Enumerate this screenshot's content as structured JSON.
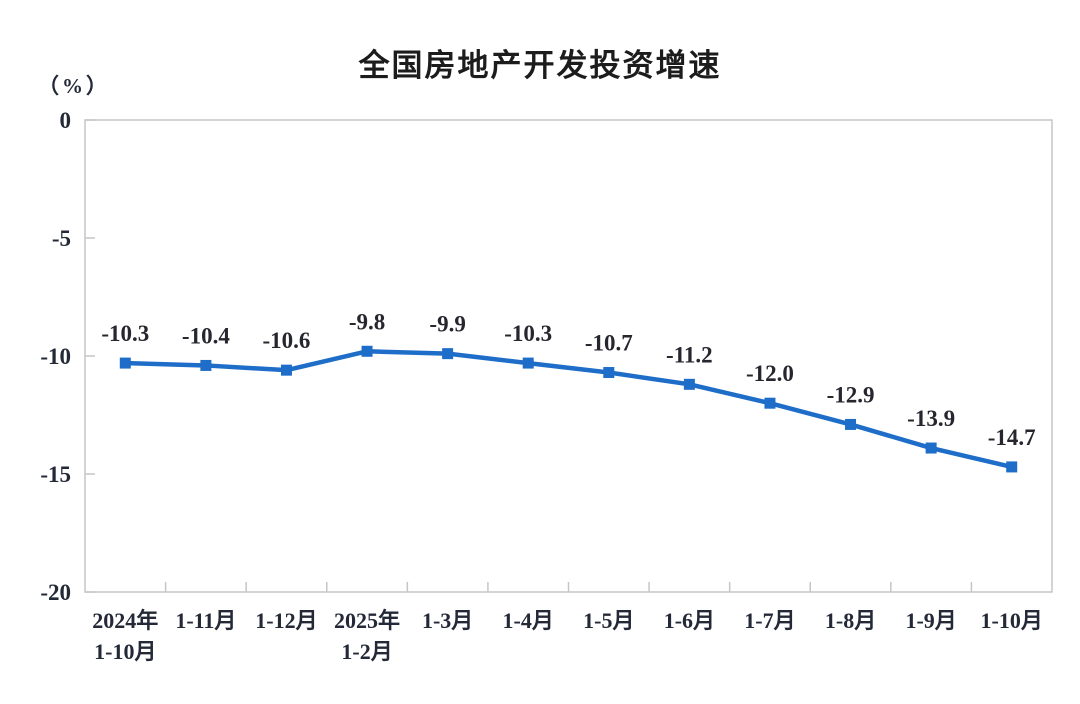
{
  "chart_data": {
    "type": "line",
    "title": "全国房地产开发投资增速",
    "ylabel": "（%）",
    "categories": [
      "2024年\n1-10月",
      "1-11月",
      "1-12月",
      "2025年\n1-2月",
      "1-3月",
      "1-4月",
      "1-5月",
      "1-6月",
      "1-7月",
      "1-8月",
      "1-9月",
      "1-10月"
    ],
    "values": [
      -10.3,
      -10.4,
      -10.6,
      -9.8,
      -9.9,
      -10.3,
      -10.7,
      -11.2,
      -12.0,
      -12.9,
      -13.9,
      -14.7
    ],
    "data_labels": [
      "-10.3",
      "-10.4",
      "-10.6",
      "-9.8",
      "-9.9",
      "-10.3",
      "-10.7",
      "-11.2",
      "-12.0",
      "-12.9",
      "-13.9",
      "-14.7"
    ],
    "ylim": [
      -20,
      0
    ],
    "yticks": [
      0,
      -5,
      -10,
      -15,
      -20
    ],
    "ytick_labels": [
      "0",
      "-5",
      "-10",
      "-15",
      "-20"
    ],
    "grid": false,
    "legend": "none",
    "line_color": "#1e6dc8",
    "marker": "square",
    "axis_color": "#c6c6c6",
    "label_color": "#232936"
  }
}
